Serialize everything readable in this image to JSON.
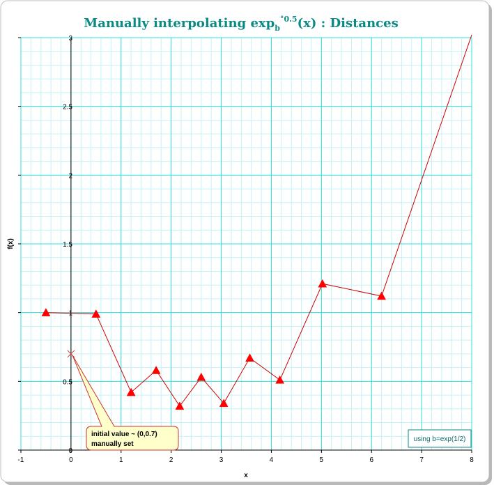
{
  "chart_data": {
    "type": "line",
    "title": {
      "prefix": "Manually interpolating exp",
      "sub": "b",
      "sup": "°0.5",
      "suffix": "(x) : Distances"
    },
    "xlabel": "x",
    "ylabel": "f(x)",
    "xlim": [
      -1,
      8
    ],
    "ylim": [
      0,
      3
    ],
    "x_ticks": [
      "-1",
      "0",
      "1",
      "2",
      "3",
      "4",
      "5",
      "6",
      "7",
      "8"
    ],
    "y_ticks": [
      "0",
      "0.5",
      "1",
      "1.5",
      "2",
      "2.5",
      "3"
    ],
    "grid": true,
    "series": [
      {
        "marker": "triangle",
        "color": "#ff0000",
        "line_color": "#cc0000",
        "x": [
          -0.5,
          0.5,
          1.2,
          1.7,
          2.17,
          2.6,
          3.05,
          3.57,
          4.17,
          5.02,
          6.2,
          8.0
        ],
        "y": [
          1.0,
          0.99,
          0.42,
          0.58,
          0.32,
          0.53,
          0.34,
          0.67,
          0.51,
          1.21,
          1.12,
          3.02
        ],
        "markers_shown": [
          true,
          true,
          true,
          true,
          true,
          true,
          true,
          true,
          true,
          true,
          true,
          false
        ]
      }
    ],
    "initial_point": {
      "x": 0,
      "y": 0.7,
      "marker": "x",
      "color": "#cc4444"
    },
    "annotations": {
      "callout_line1": "initial value ~ (0,0.7)",
      "callout_line2": "manually set",
      "note": "using b=exp(1/2)"
    },
    "colors": {
      "major_grid": "#33dddd",
      "minor_grid": "#c4f3f6",
      "title": "#0b8a85",
      "callout_fill": "#ffffcc",
      "callout_border": "#cc3333",
      "note_border": "#0b8a85"
    }
  }
}
